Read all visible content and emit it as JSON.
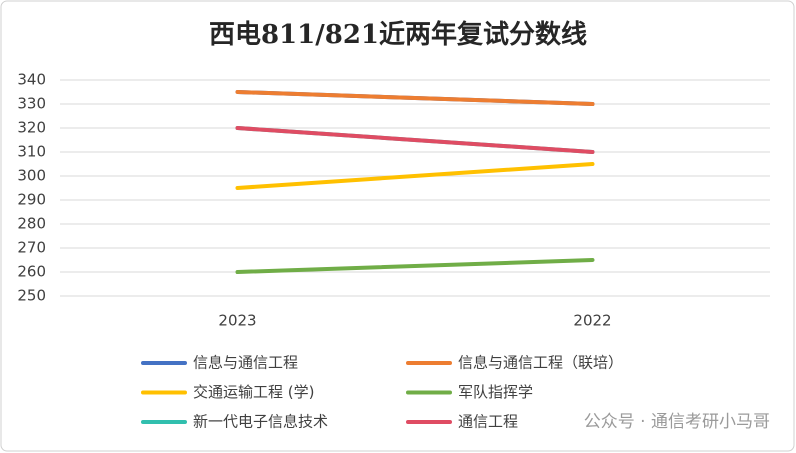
{
  "chart_data": {
    "type": "line",
    "title": "西电811/821近两年复试分数线",
    "categories": [
      "2023",
      "2022"
    ],
    "series": [
      {
        "name": "信息与通信工程",
        "color": "#4472c4",
        "values": [
          335,
          330
        ]
      },
      {
        "name": "信息与通信工程（联培）",
        "color": "#ed7d31",
        "values": [
          335,
          330
        ]
      },
      {
        "name": "交通运输工程 (学)",
        "color": "#ffc000",
        "values": [
          295,
          305
        ]
      },
      {
        "name": "军队指挥学",
        "color": "#70ad47",
        "values": [
          260,
          265
        ]
      },
      {
        "name": "新一代电子信息技术",
        "color": "#31bfae",
        "values": [
          320,
          310
        ]
      },
      {
        "name": "通信工程",
        "color": "#df4c63",
        "values": [
          320,
          310
        ]
      }
    ],
    "ylim": [
      250,
      340
    ],
    "yticks": [
      250,
      260,
      270,
      280,
      290,
      300,
      310,
      320,
      330,
      340
    ],
    "grid": true,
    "legend": "bottom",
    "watermark": "公众号 · 通信考研小马哥"
  }
}
